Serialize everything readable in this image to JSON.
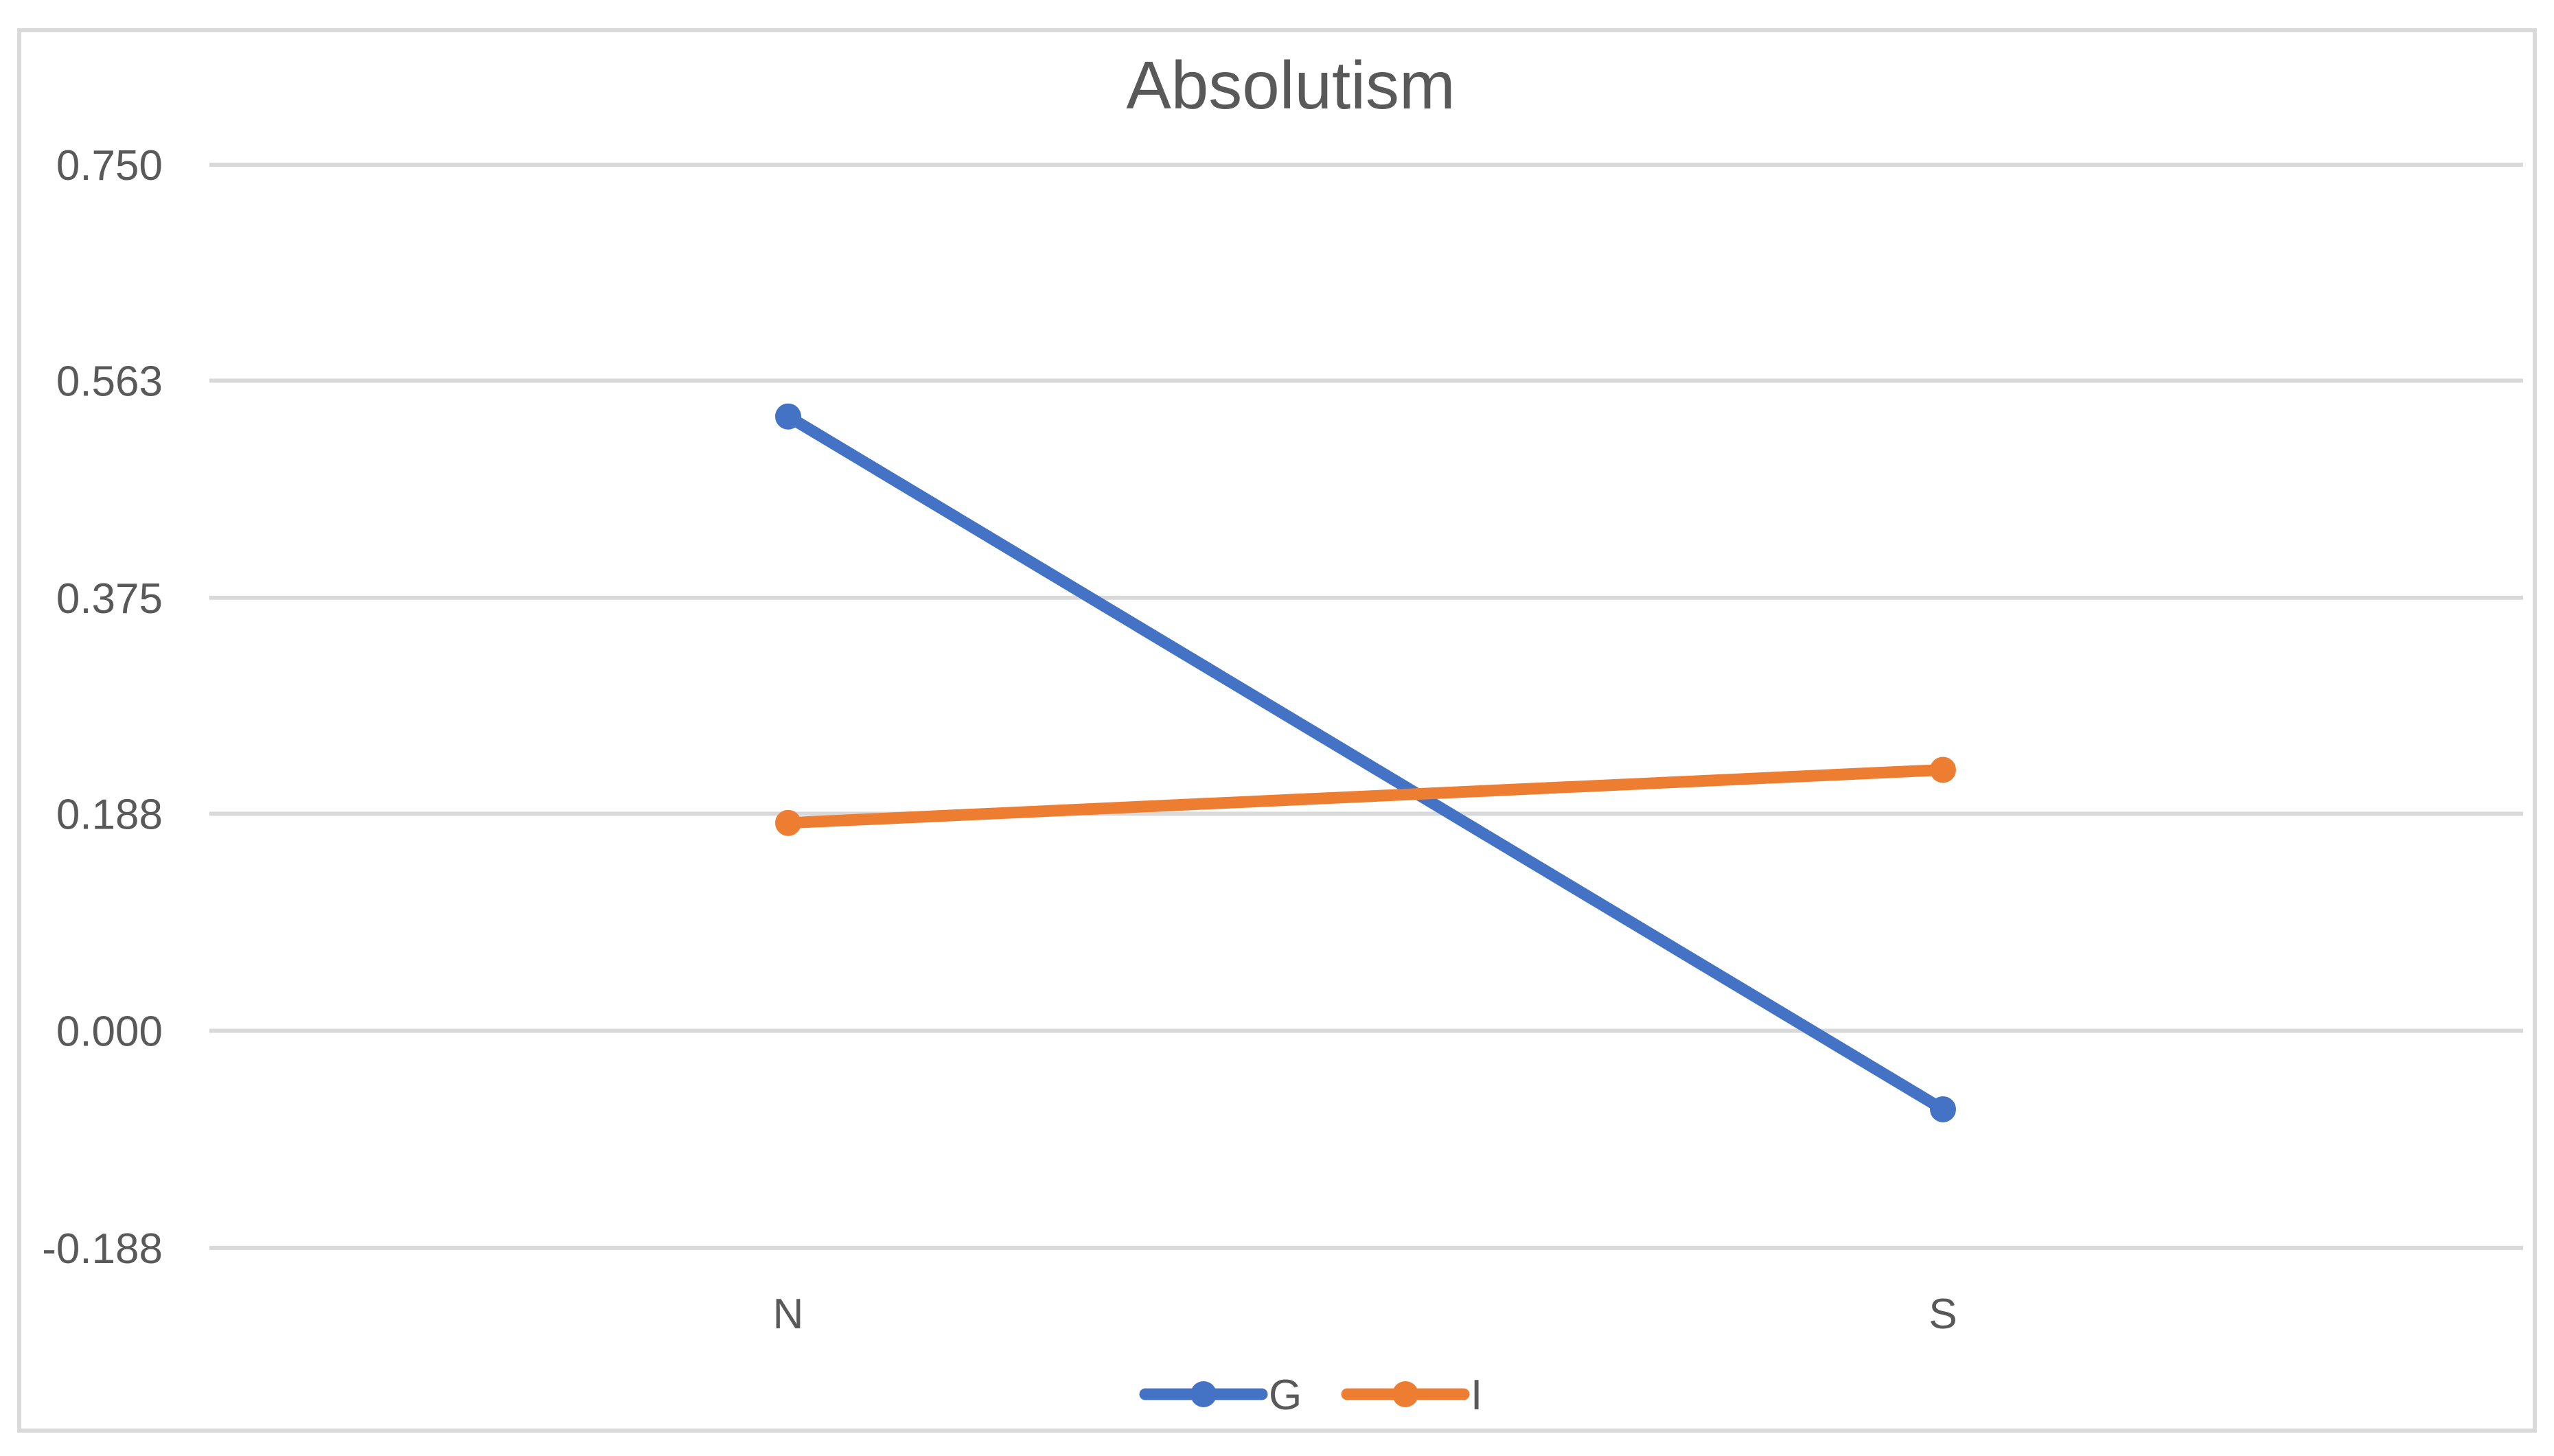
{
  "chart_data": {
    "type": "line",
    "title": "Absolutism",
    "xlabel": "",
    "ylabel": "",
    "categories": [
      "N",
      "S"
    ],
    "y_ticks": [
      "0.750",
      "0.563",
      "0.375",
      "0.188",
      "0.000",
      "-0.188"
    ],
    "ylim": [
      -0.1875,
      0.75
    ],
    "grid": true,
    "legend_position": "bottom",
    "series": [
      {
        "name": "G",
        "color": "#4472C4",
        "values": [
          0.532,
          -0.068
        ]
      },
      {
        "name": "I",
        "color": "#ED7D31",
        "values": [
          0.18,
          0.226
        ]
      }
    ]
  },
  "colors": {
    "grid": "#d9d9d9",
    "text": "#595959",
    "frame": "#d9d9d9"
  }
}
